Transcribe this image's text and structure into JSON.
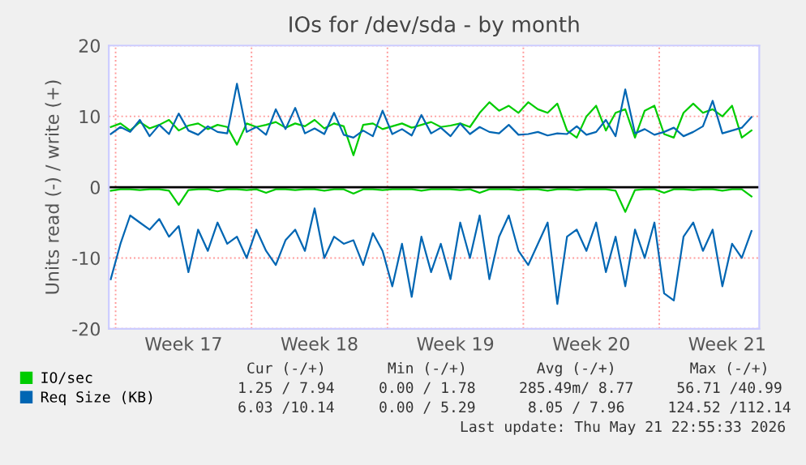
{
  "chart_data": {
    "type": "line",
    "title": "IOs for /dev/sda - by month",
    "ylabel": "Units read (-) / write (+)",
    "x": [
      "2026-04-19T18:00",
      "2026-04-20T06:00",
      "2026-04-20T18:00",
      "2026-04-21T06:00",
      "2026-04-21T18:00",
      "2026-04-22T06:00",
      "2026-04-22T18:00",
      "2026-04-23T06:00",
      "2026-04-23T18:00",
      "2026-04-24T06:00",
      "2026-04-24T18:00",
      "2026-04-25T06:00",
      "2026-04-25T18:00",
      "2026-04-26T06:00",
      "2026-04-26T18:00",
      "2026-04-27T06:00",
      "2026-04-27T18:00",
      "2026-04-28T06:00",
      "2026-04-28T18:00",
      "2026-04-29T06:00",
      "2026-04-29T18:00",
      "2026-04-30T06:00",
      "2026-04-30T18:00",
      "2026-05-01T06:00",
      "2026-05-01T18:00",
      "2026-05-02T06:00",
      "2026-05-02T18:00",
      "2026-05-03T06:00",
      "2026-05-03T18:00",
      "2026-05-04T06:00",
      "2026-05-04T18:00",
      "2026-05-05T06:00",
      "2026-05-05T18:00",
      "2026-05-06T06:00",
      "2026-05-06T18:00",
      "2026-05-07T06:00",
      "2026-05-07T18:00",
      "2026-05-08T06:00",
      "2026-05-08T18:00",
      "2026-05-09T06:00",
      "2026-05-09T18:00",
      "2026-05-10T06:00",
      "2026-05-10T18:00",
      "2026-05-11T06:00",
      "2026-05-11T18:00",
      "2026-05-12T06:00",
      "2026-05-12T18:00",
      "2026-05-13T06:00",
      "2026-05-13T18:00",
      "2026-05-14T06:00",
      "2026-05-14T18:00",
      "2026-05-15T06:00",
      "2026-05-15T18:00",
      "2026-05-16T06:00",
      "2026-05-16T18:00",
      "2026-05-17T06:00",
      "2026-05-17T18:00",
      "2026-05-18T06:00",
      "2026-05-18T18:00",
      "2026-05-19T06:00",
      "2026-05-19T18:00",
      "2026-05-20T06:00",
      "2026-05-20T18:00",
      "2026-05-21T06:00",
      "2026-05-21T18:00",
      "2026-05-22T06:00",
      "2026-05-22T18:00"
    ],
    "series": [
      {
        "name": "IO/sec",
        "color": "#00cc00",
        "values": [
          8.5,
          9,
          8,
          9.2,
          8.3,
          8.8,
          9.5,
          8,
          8.7,
          9,
          8.2,
          8.8,
          8.5,
          6,
          9,
          8.5,
          8.8,
          9.2,
          8.4,
          9,
          8.6,
          9.5,
          8.3,
          9,
          8.6,
          4.5,
          8.8,
          9,
          8.2,
          8.6,
          9,
          8.4,
          8.8,
          9.2,
          8.5,
          8.7,
          9,
          8.5,
          10.5,
          12,
          10.8,
          11.5,
          10.5,
          12,
          11,
          10.5,
          11.8,
          8,
          7,
          10,
          11.5,
          8,
          10.5,
          11,
          7,
          10.8,
          11.5,
          7.5,
          7,
          10.5,
          11.8,
          10.5,
          11,
          10,
          11.5,
          7,
          8
        ]
      },
      {
        "name": "Req Size (KB)",
        "color": "#0066b3",
        "values": [
          7.5,
          8.5,
          7.8,
          9.5,
          7.2,
          8.8,
          7.5,
          10.4,
          8,
          7.4,
          8.6,
          7.8,
          7.6,
          14.6,
          7.8,
          8.5,
          7.4,
          11,
          8.2,
          11.2,
          7.6,
          8.3,
          7.5,
          10.5,
          7.4,
          7,
          8,
          7.2,
          10.8,
          7.5,
          8.2,
          7.3,
          10.2,
          7.6,
          8.4,
          7.2,
          9,
          7.5,
          8.5,
          7.8,
          7.6,
          8.8,
          7.4,
          7.5,
          7.8,
          7.3,
          7.6,
          7.5,
          8.6,
          7.4,
          7.8,
          9.5,
          7.2,
          13.8,
          7.6,
          8.2,
          7.4,
          7.8,
          8.4,
          7.2,
          7.8,
          8.6,
          12.2,
          7.6,
          8,
          8.4,
          9.9
        ]
      },
      {
        "color": "#00cc00",
        "values": [
          -0.5,
          -0.3,
          -0.3,
          -0.4,
          -0.3,
          -0.3,
          -0.5,
          -2.5,
          -0.4,
          -0.3,
          -0.3,
          -0.6,
          -0.3,
          -0.3,
          -0.4,
          -0.3,
          -0.8,
          -0.3,
          -0.3,
          -0.4,
          -0.3,
          -0.3,
          -0.5,
          -0.3,
          -0.3,
          -0.9,
          -0.3,
          -0.3,
          -0.4,
          -0.3,
          -0.3,
          -0.3,
          -0.5,
          -0.3,
          -0.3,
          -0.3,
          -0.4,
          -0.3,
          -0.8,
          -0.3,
          -0.3,
          -0.3,
          -0.4,
          -0.3,
          -0.3,
          -0.5,
          -0.3,
          -0.3,
          -0.4,
          -0.3,
          -0.3,
          -0.3,
          -0.5,
          -3.5,
          -0.4,
          -0.3,
          -0.3,
          -0.8,
          -0.3,
          -0.3,
          -0.4,
          -0.3,
          -0.3,
          -0.5,
          -0.3,
          -0.3,
          -1.3
        ]
      },
      {
        "color": "#0066b3",
        "values": [
          -13,
          -8,
          -4,
          -5,
          -6,
          -4.5,
          -7,
          -5.5,
          -12,
          -6,
          -9,
          -5,
          -8,
          -7,
          -10,
          -6,
          -9,
          -11,
          -7.5,
          -6,
          -9,
          -3,
          -10,
          -7,
          -8,
          -7.5,
          -11,
          -6.5,
          -9,
          -14,
          -8,
          -15.5,
          -7,
          -12,
          -8,
          -13,
          -5,
          -10,
          -4,
          -13,
          -7,
          -4,
          -9,
          -11,
          -8,
          -5,
          -16.5,
          -7,
          -6,
          -9,
          -5,
          -12,
          -7,
          -14,
          -6,
          -10,
          -5,
          -15,
          -16,
          -7,
          -5,
          -9,
          -6,
          -14,
          -8,
          -10,
          -6.2
        ]
      }
    ],
    "xlim": [
      "2026-04-19T15:36",
      "2026-05-23T03:36"
    ],
    "xticks": [
      {
        "value": "2026-04-20",
        "label": null
      },
      {
        "value": "2026-04-23T12:00",
        "label": "Week 17"
      },
      {
        "value": "2026-04-27",
        "label": null
      },
      {
        "value": "2026-04-30T12:00",
        "label": "Week 18"
      },
      {
        "value": "2026-05-04",
        "label": null
      },
      {
        "value": "2026-05-07T12:00",
        "label": "Week 19"
      },
      {
        "value": "2026-05-11",
        "label": null
      },
      {
        "value": "2026-05-14T12:00",
        "label": "Week 20"
      },
      {
        "value": "2026-05-18",
        "label": null
      },
      {
        "value": "2026-05-21T12:00",
        "label": "Week 21"
      }
    ],
    "ylim": [
      -20,
      20
    ],
    "yticks": [
      -20,
      -10,
      0,
      10,
      20
    ],
    "ref_lines": [
      {
        "axis": "y",
        "value": 0,
        "color": "#000000"
      }
    ],
    "grid": true,
    "legend": "bottom left",
    "line_style": "solid",
    "annotations": [
      "Cur (-/+)",
      "Min (-/+)",
      "Avg (-/+)",
      "Max (-/+)",
      "1.25 / 7.94",
      "0.00 / 1.78",
      "285.49m/ 8.77",
      "56.71 /40.99",
      "6.03 /10.14",
      "0.00 / 5.29",
      "8.05 / 7.96",
      "124.52 /112.14",
      "Last update: Thu May 21 22:55:33 2026"
    ]
  }
}
